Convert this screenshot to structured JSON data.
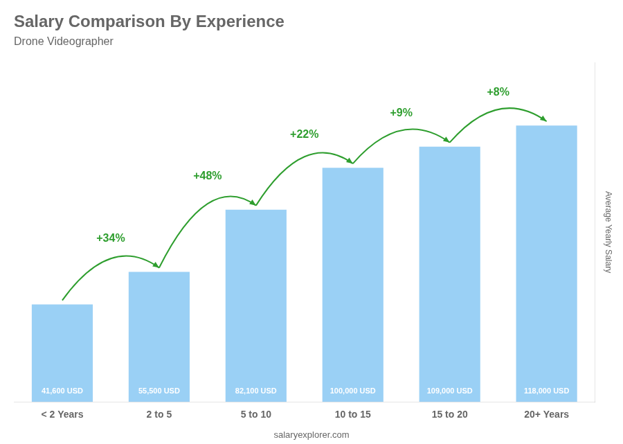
{
  "chart_data": {
    "type": "bar",
    "title": "Salary Comparison By Experience",
    "subtitle": "Drone Videographer",
    "categories": [
      "< 2 Years",
      "2 to 5",
      "5 to 10",
      "10 to 15",
      "15 to 20",
      "20+ Years"
    ],
    "values": [
      41600,
      55500,
      82100,
      100000,
      109000,
      118000
    ],
    "value_labels": [
      "41,600 USD",
      "55,500 USD",
      "82,100 USD",
      "100,000 USD",
      "109,000 USD",
      "118,000 USD"
    ],
    "data_labels": true,
    "annotations": [
      "+34%",
      "+48%",
      "+22%",
      "+9%",
      "+8%"
    ],
    "ylabel": "Average Yearly Salary",
    "footer": "salaryexplorer.com",
    "ylim": [
      0,
      145000
    ],
    "tick_labels": "x",
    "grid": false
  }
}
